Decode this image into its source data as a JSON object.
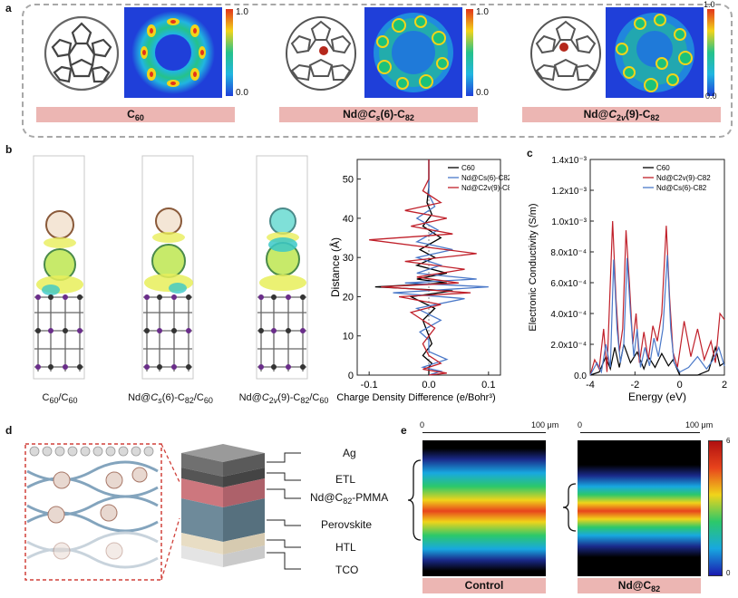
{
  "panels": {
    "a": {
      "label": "a",
      "colorbar": {
        "max": "1.0",
        "min": "0.0"
      },
      "items": [
        {
          "formula": "C<span class=\"sub\">60</span>"
        },
        {
          "formula": "Nd@<i>C</i><span class=\"sub\"><i>s</i></span>(6)-C<span class=\"sub\">82</span>"
        },
        {
          "formula": "Nd@<i>C</i><span class=\"sub\">2<i>v</i></span>(9)-C<span class=\"sub\">82</span>"
        }
      ]
    },
    "b": {
      "label": "b",
      "captions": [
        "C<span class=\"sub\">60</span>/C<span class=\"sub\">60</span>",
        "Nd@<i>C</i><span class=\"sub\"><i>s</i></span>(6)-C<span class=\"sub\">82</span>/C<span class=\"sub\">60</span>",
        "Nd@<i>C</i><span class=\"sub\">2<i>v</i></span>(9)-C<span class=\"sub\">82</span>/C<span class=\"sub\">60</span>"
      ]
    },
    "c": {
      "label": "c"
    },
    "d": {
      "label": "d",
      "layers": [
        "Ag",
        "ETL",
        "Nd@C<span class=\"sub\">82</span>-PMMA",
        "Perovskite",
        "HTL",
        "TCO"
      ]
    },
    "e": {
      "label": "e",
      "scale_start": "0",
      "scale_label": "100 μm",
      "colorbar_max": "6",
      "colorbar_min": "0",
      "items": [
        {
          "name": "Control"
        },
        {
          "name": "Nd@C<span class=\"sub\">82</span>"
        }
      ]
    }
  },
  "colors": {
    "pink_bar": "#ecb6b3",
    "series_c60": "#000000",
    "series_cs": "#4a78c8",
    "series_c2v": "#c0202a"
  },
  "chart_data": [
    {
      "type": "line",
      "panel": "b",
      "xlabel": "Charge Density Difference (e/Bohr³)",
      "ylabel": "Distance (Å)",
      "xlim": [
        -0.12,
        0.12
      ],
      "ylim": [
        0,
        55
      ],
      "xticks": [
        "-0.1",
        "0.0",
        "0.1"
      ],
      "yticks": [
        "0",
        "10",
        "20",
        "30",
        "40",
        "50"
      ],
      "legend_position": "top-right",
      "series": [
        {
          "name": "C60",
          "color": "#000000",
          "points": [
            [
              0,
              0
            ],
            [
              0,
              2
            ],
            [
              0.005,
              3
            ],
            [
              -0.01,
              5
            ],
            [
              0.005,
              8
            ],
            [
              0,
              10
            ],
            [
              -0.01,
              14
            ],
            [
              0.01,
              17
            ],
            [
              -0.03,
              20
            ],
            [
              0.04,
              21.5
            ],
            [
              -0.09,
              22.5
            ],
            [
              0.03,
              23.5
            ],
            [
              -0.02,
              24.5
            ],
            [
              0.03,
              26
            ],
            [
              -0.02,
              28
            ],
            [
              0.01,
              30
            ],
            [
              -0.015,
              32
            ],
            [
              0.02,
              35
            ],
            [
              -0.01,
              38
            ],
            [
              0.005,
              41
            ],
            [
              -0.003,
              44
            ],
            [
              0,
              48
            ],
            [
              0,
              55
            ]
          ]
        },
        {
          "name": "Nd@Cs(6)-C82",
          "color": "#4a78c8",
          "points": [
            [
              0,
              0
            ],
            [
              0.02,
              1
            ],
            [
              -0.01,
              2
            ],
            [
              0.03,
              4
            ],
            [
              0,
              6
            ],
            [
              0,
              9
            ],
            [
              -0.015,
              11
            ],
            [
              0.02,
              14
            ],
            [
              -0.02,
              17
            ],
            [
              0.06,
              19.5
            ],
            [
              -0.06,
              21
            ],
            [
              0.1,
              22.5
            ],
            [
              -0.04,
              23.5
            ],
            [
              0.08,
              24.5
            ],
            [
              -0.02,
              26
            ],
            [
              0.02,
              28
            ],
            [
              -0.02,
              30
            ],
            [
              0.04,
              32
            ],
            [
              -0.02,
              34
            ],
            [
              0.015,
              37
            ],
            [
              -0.02,
              40
            ],
            [
              0.01,
              43
            ],
            [
              0,
              46
            ],
            [
              0,
              55
            ]
          ]
        },
        {
          "name": "Nd@C2v(9)-C82",
          "color": "#c0202a",
          "points": [
            [
              0,
              0
            ],
            [
              0.03,
              0.5
            ],
            [
              -0.01,
              1.5
            ],
            [
              0.02,
              3
            ],
            [
              0,
              5
            ],
            [
              -0.01,
              8
            ],
            [
              0.01,
              12
            ],
            [
              -0.03,
              16
            ],
            [
              0.02,
              18
            ],
            [
              -0.05,
              20
            ],
            [
              0.07,
              21
            ],
            [
              -0.08,
              22.5
            ],
            [
              0.05,
              23.5
            ],
            [
              -0.02,
              25
            ],
            [
              0.06,
              27
            ],
            [
              -0.04,
              29
            ],
            [
              0.08,
              31
            ],
            [
              -0.1,
              34.5
            ],
            [
              0.04,
              36
            ],
            [
              -0.03,
              38
            ],
            [
              0.03,
              40
            ],
            [
              -0.04,
              42
            ],
            [
              0.02,
              44
            ],
            [
              -0.01,
              47
            ],
            [
              0,
              50
            ],
            [
              0,
              55
            ]
          ]
        }
      ]
    },
    {
      "type": "line",
      "panel": "c",
      "xlabel": "Energy (eV)",
      "ylabel": "Electronic Conductivity (S/m)",
      "xlim": [
        -4,
        2
      ],
      "ylim": [
        0,
        0.0014
      ],
      "xticks": [
        "-4",
        "-2",
        "0",
        "2"
      ],
      "yticks": [
        "0.0",
        "2.0x10⁻⁴",
        "4.0x10⁻⁴",
        "6.0x10⁻⁴",
        "8.0x10⁻⁴",
        "1.0x10⁻³",
        "1.2x10⁻³",
        "1.4x10⁻³"
      ],
      "legend_position": "top-right",
      "series": [
        {
          "name": "C60",
          "color": "#000000",
          "points": [
            [
              -4,
              0
            ],
            [
              -3.6,
              2e-05
            ],
            [
              -3.3,
              0.00012
            ],
            [
              -3.1,
              4e-05
            ],
            [
              -2.9,
              0.00018
            ],
            [
              -2.7,
              5e-05
            ],
            [
              -2.5,
              0.0002
            ],
            [
              -2.2,
              8e-05
            ],
            [
              -1.9,
              0.00015
            ],
            [
              -1.6,
              4e-05
            ],
            [
              -1.4,
              0.00012
            ],
            [
              -1.1,
              5e-05
            ],
            [
              -0.8,
              0.00014
            ],
            [
              -0.5,
              6e-05
            ],
            [
              -0.3,
              0.0001
            ],
            [
              0,
              0
            ],
            [
              0.8,
              0
            ],
            [
              1.3,
              3e-05
            ],
            [
              1.6,
              0.00018
            ],
            [
              1.8,
              6e-05
            ],
            [
              2,
              8e-05
            ]
          ]
        },
        {
          "name": "Nd@C2v(9)-C82",
          "color": "#c0202a",
          "points": [
            [
              -4,
              0
            ],
            [
              -3.8,
              0.0001
            ],
            [
              -3.6,
              4e-05
            ],
            [
              -3.4,
              0.0003
            ],
            [
              -3.25,
              2e-05
            ],
            [
              -3.0,
              0.001
            ],
            [
              -2.85,
              0.0005
            ],
            [
              -2.7,
              0.00015
            ],
            [
              -2.55,
              0.0003
            ],
            [
              -2.4,
              0.00094
            ],
            [
              -2.25,
              0.0006
            ],
            [
              -2.1,
              0.0002
            ],
            [
              -1.95,
              0.0004
            ],
            [
              -1.8,
              8e-05
            ],
            [
              -1.6,
              0.00028
            ],
            [
              -1.4,
              0.0001
            ],
            [
              -1.2,
              0.00032
            ],
            [
              -1.0,
              0.00022
            ],
            [
              -0.8,
              0.0004
            ],
            [
              -0.6,
              0.00097
            ],
            [
              -0.45,
              0.0005
            ],
            [
              -0.3,
              0.00015
            ],
            [
              -0.1,
              5e-05
            ],
            [
              0.2,
              0.00035
            ],
            [
              0.5,
              0.00012
            ],
            [
              0.8,
              0.0003
            ],
            [
              1.1,
              0.0001
            ],
            [
              1.4,
              0.00022
            ],
            [
              1.6,
              8e-05
            ],
            [
              1.8,
              0.0004
            ],
            [
              2,
              0.00036
            ]
          ]
        },
        {
          "name": "Nd@Cs(6)-C82",
          "color": "#4a78c8",
          "points": [
            [
              -4,
              0
            ],
            [
              -3.7,
              8e-05
            ],
            [
              -3.5,
              2e-05
            ],
            [
              -3.3,
              0.0002
            ],
            [
              -3.1,
              5e-05
            ],
            [
              -2.95,
              0.00075
            ],
            [
              -2.8,
              0.0003
            ],
            [
              -2.65,
              8e-05
            ],
            [
              -2.5,
              0.0002
            ],
            [
              -2.35,
              0.00076
            ],
            [
              -2.2,
              0.0004
            ],
            [
              -2.05,
              0.00012
            ],
            [
              -1.9,
              0.0003
            ],
            [
              -1.75,
              5e-05
            ],
            [
              -1.55,
              0.00018
            ],
            [
              -1.35,
              6e-05
            ],
            [
              -1.15,
              0.00024
            ],
            [
              -0.95,
              0.00012
            ],
            [
              -0.75,
              0.0003
            ],
            [
              -0.55,
              0.00078
            ],
            [
              -0.4,
              0.0003
            ],
            [
              -0.25,
              8e-05
            ],
            [
              0,
              2e-05
            ],
            [
              0.4,
              5e-05
            ],
            [
              0.8,
              0.00012
            ],
            [
              1.2,
              4e-05
            ],
            [
              1.5,
              0.0001
            ],
            [
              1.75,
              0.00018
            ],
            [
              2,
              6e-05
            ]
          ]
        }
      ]
    }
  ]
}
